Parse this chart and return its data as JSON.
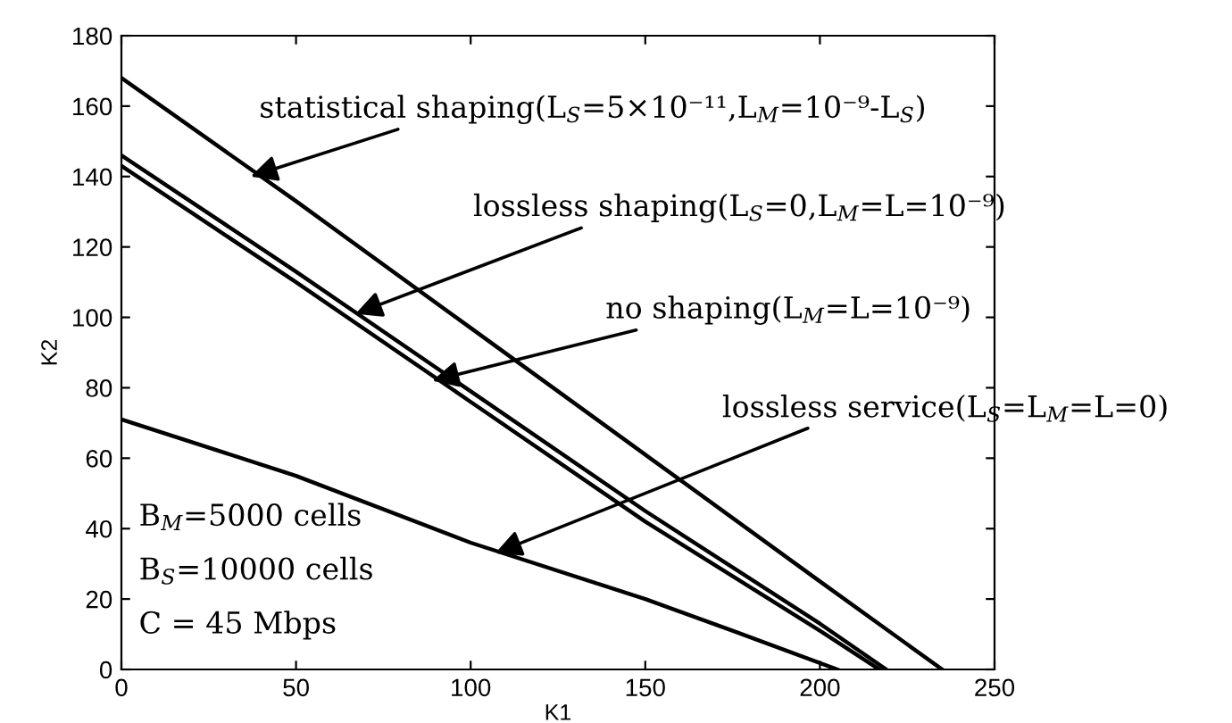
{
  "chart_data": {
    "type": "line",
    "xlabel": "K1",
    "ylabel": "K2",
    "xlim": [
      0,
      250
    ],
    "ylim": [
      0,
      180
    ],
    "xticks": [
      0,
      50,
      100,
      150,
      200,
      250
    ],
    "yticks": [
      0,
      20,
      40,
      60,
      80,
      100,
      120,
      140,
      160,
      180
    ],
    "grid": false,
    "legend": false,
    "marker": "none",
    "line_style": "solid",
    "series": [
      {
        "color": "#000000",
        "x": [
          0,
          50,
          100,
          150,
          200,
          235
        ],
        "values": [
          168,
          133,
          97,
          61,
          25,
          0
        ]
      },
      {
        "color": "#000000",
        "x": [
          0,
          50,
          100,
          150,
          200,
          219
        ],
        "values": [
          146,
          113,
          79,
          45,
          13,
          0
        ]
      },
      {
        "color": "#000000",
        "x": [
          0,
          50,
          100,
          150,
          200,
          217
        ],
        "values": [
          143,
          110,
          76,
          42,
          11,
          0
        ]
      },
      {
        "color": "#000000",
        "x": [
          0,
          50,
          100,
          150,
          175,
          205
        ],
        "values": [
          71,
          55,
          36,
          20,
          11,
          0
        ]
      }
    ],
    "annotations": [
      {
        "text": "statistical shaping(L$_{S}$=5×10⁻¹¹,L$_{M}$=10⁻⁹-L$_{S}$)",
        "x": 37,
        "y": 140
      },
      {
        "text": "lossless shaping(L$_{S}$=0,L$_{M}$=L=10⁻⁹)",
        "x": 67,
        "y": 101
      },
      {
        "text": "no shaping(L$_{M}$=L=10⁻⁹)",
        "x": 89,
        "y": 82
      },
      {
        "text": "lossless service(L$_{S}$=L$_{M}$=L=0)",
        "x": 107,
        "y": 33
      },
      "B$_{M}$=5000 cells",
      "B$_{S}$=10000 cells",
      "C = 45 Mbps"
    ]
  }
}
